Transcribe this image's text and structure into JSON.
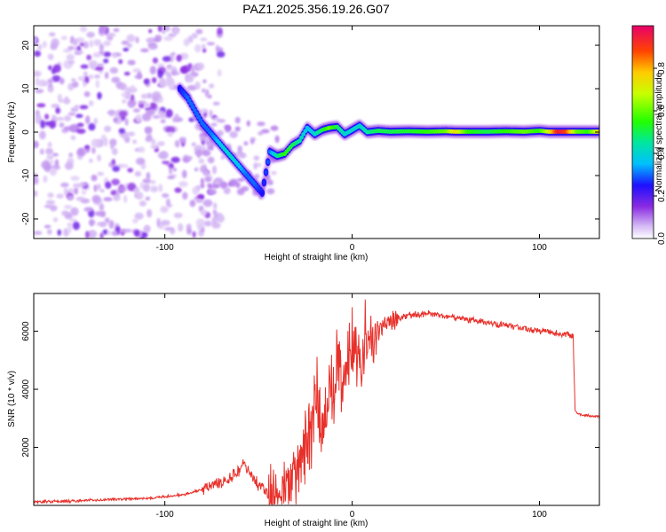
{
  "title": "PAZ1.2025.356.19.26.G07",
  "colors": {
    "line": "#e8302a",
    "frame": "#000000",
    "background": "#ffffff"
  },
  "chart_data": [
    {
      "type": "heatmap",
      "id": "spectrogram",
      "xlabel": "Height of straight line (km)",
      "ylabel": "Frequency (Hz)",
      "xlim": [
        -170,
        132
      ],
      "ylim": [
        -24.5,
        24.5
      ],
      "xticks": [
        -100,
        0,
        100
      ],
      "xtick_labels": [
        "-100",
        "0",
        "100"
      ],
      "yticks": [
        -20,
        -10,
        0,
        10,
        20
      ],
      "ytick_labels": [
        "-20",
        "-10",
        "0",
        "10",
        "20"
      ],
      "grid": false,
      "scatter_region": {
        "x_range": [
          -170,
          -80
        ],
        "y_range": [
          -24,
          24
        ],
        "note": "low-amplitude noise blobs"
      },
      "ridge": [
        {
          "x": -92,
          "y": 10,
          "amp": 0.25
        },
        {
          "x": -88,
          "y": 8,
          "amp": 0.3
        },
        {
          "x": -84,
          "y": 5,
          "amp": 0.3
        },
        {
          "x": -80,
          "y": 2,
          "amp": 0.3
        },
        {
          "x": -76,
          "y": 0,
          "amp": 0.3
        },
        {
          "x": -72,
          "y": -2,
          "amp": 0.35
        },
        {
          "x": -68,
          "y": -4,
          "amp": 0.4
        },
        {
          "x": -64,
          "y": -6,
          "amp": 0.4
        },
        {
          "x": -60,
          "y": -8,
          "amp": 0.35
        },
        {
          "x": -56,
          "y": -10,
          "amp": 0.3
        },
        {
          "x": -52,
          "y": -12,
          "amp": 0.3
        },
        {
          "x": -48,
          "y": -14,
          "amp": 0.25
        },
        {
          "x": -44,
          "y": -4.5,
          "amp": 0.3
        },
        {
          "x": -40,
          "y": -5.5,
          "amp": 0.45
        },
        {
          "x": -36,
          "y": -5,
          "amp": 0.55
        },
        {
          "x": -32,
          "y": -3,
          "amp": 0.5
        },
        {
          "x": -28,
          "y": -2,
          "amp": 0.45
        },
        {
          "x": -24,
          "y": 1,
          "amp": 0.35
        },
        {
          "x": -20,
          "y": -0.5,
          "amp": 0.4
        },
        {
          "x": -16,
          "y": 0.5,
          "amp": 0.5
        },
        {
          "x": -12,
          "y": 1,
          "amp": 0.6
        },
        {
          "x": -8,
          "y": 1.2,
          "amp": 0.5
        },
        {
          "x": -4,
          "y": -0.5,
          "amp": 0.4
        },
        {
          "x": 0,
          "y": 0.5,
          "amp": 0.4
        },
        {
          "x": 4,
          "y": 1.5,
          "amp": 0.4
        },
        {
          "x": 8,
          "y": 0,
          "amp": 0.45
        },
        {
          "x": 14,
          "y": 0.3,
          "amp": 0.5
        },
        {
          "x": 20,
          "y": 0.1,
          "amp": 0.5
        },
        {
          "x": 30,
          "y": 0.2,
          "amp": 0.52
        },
        {
          "x": 40,
          "y": 0.1,
          "amp": 0.55
        },
        {
          "x": 50,
          "y": 0.2,
          "amp": 0.6
        },
        {
          "x": 55,
          "y": 0.1,
          "amp": 0.75
        },
        {
          "x": 62,
          "y": 0.1,
          "amp": 0.55
        },
        {
          "x": 72,
          "y": 0.1,
          "amp": 0.5
        },
        {
          "x": 82,
          "y": 0.2,
          "amp": 0.55
        },
        {
          "x": 92,
          "y": 0.1,
          "amp": 0.6
        },
        {
          "x": 100,
          "y": 0.3,
          "amp": 0.55
        },
        {
          "x": 105,
          "y": 0.1,
          "amp": 0.7
        },
        {
          "x": 110,
          "y": 0.1,
          "amp": 0.95
        },
        {
          "x": 114,
          "y": 0.1,
          "amp": 0.9
        },
        {
          "x": 120,
          "y": 0.1,
          "amp": 0.6
        },
        {
          "x": 126,
          "y": 0.1,
          "amp": 0.55
        },
        {
          "x": 132,
          "y": 0.1,
          "amp": 0.75
        }
      ],
      "colorbar": {
        "label": "Normalized spectral amplitude",
        "range": [
          0,
          1
        ],
        "ticks": [
          0.0,
          0.2,
          0.4,
          0.6,
          0.8
        ],
        "tick_labels": [
          "0.0",
          "0.2",
          "0.4",
          "0.6",
          "0.8"
        ]
      }
    },
    {
      "type": "line",
      "id": "snr",
      "xlabel": "Height of straight line (km)",
      "ylabel": "SNR (10 * v/v)",
      "xlim": [
        -170,
        132
      ],
      "ylim": [
        0,
        7300
      ],
      "xticks": [
        -100,
        0,
        100
      ],
      "xtick_labels": [
        "-100",
        "0",
        "100"
      ],
      "yticks": [
        2000,
        4000,
        6000
      ],
      "ytick_labels": [
        "2000",
        "4000",
        "6000"
      ],
      "grid": false,
      "series": [
        {
          "name": "SNR",
          "x": [
            -170,
            -150,
            -130,
            -110,
            -100,
            -90,
            -80,
            -70,
            -65,
            -60,
            -58,
            -55,
            -50,
            -45,
            -40,
            -35,
            -30,
            -28,
            -25,
            -22,
            -20,
            -18,
            -16,
            -14,
            -12,
            -10,
            -8,
            -5,
            -2,
            0,
            2,
            5,
            8,
            10,
            12,
            15,
            20,
            25,
            30,
            40,
            50,
            60,
            70,
            80,
            90,
            100,
            110,
            115,
            118,
            119,
            120,
            125,
            132
          ],
          "y": [
            120,
            150,
            200,
            250,
            300,
            380,
            550,
            800,
            1000,
            1200,
            1500,
            1100,
            700,
            400,
            300,
            600,
            1100,
            1500,
            2000,
            2600,
            3000,
            3400,
            2800,
            3200,
            4200,
            3800,
            4600,
            4300,
            5200,
            5600,
            5400,
            5000,
            5600,
            6000,
            6100,
            6200,
            6350,
            6450,
            6550,
            6600,
            6520,
            6420,
            6320,
            6220,
            6120,
            6020,
            5920,
            5880,
            5830,
            3300,
            3150,
            3100,
            3050
          ]
        }
      ]
    }
  ]
}
